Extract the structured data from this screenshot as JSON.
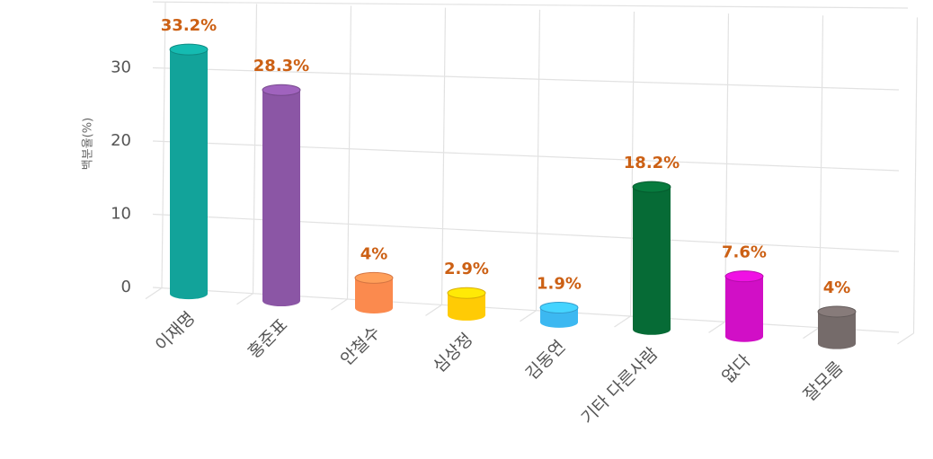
{
  "chart_data": {
    "type": "bar",
    "y_label": "백분율(%)",
    "categories": [
      "이재명",
      "홍준표",
      "안철수",
      "심상정",
      "김동연",
      "기타 다른사람",
      "없다",
      "잘모름"
    ],
    "values": [
      33.2,
      28.3,
      4,
      2.9,
      1.9,
      18.2,
      7.6,
      4
    ],
    "value_labels": [
      "33.2%",
      "28.3%",
      "4%",
      "2.9%",
      "1.9%",
      "18.2%",
      "7.6%",
      "4%"
    ],
    "colors": [
      "#12a39a",
      "#8b56a5",
      "#fb8a4e",
      "#ffcb05",
      "#3cb8f1",
      "#066b36",
      "#d10fc6",
      "#756b6a"
    ],
    "ylim": [
      0,
      39
    ],
    "yticks": [
      0,
      10,
      20,
      30
    ],
    "grid": true
  }
}
